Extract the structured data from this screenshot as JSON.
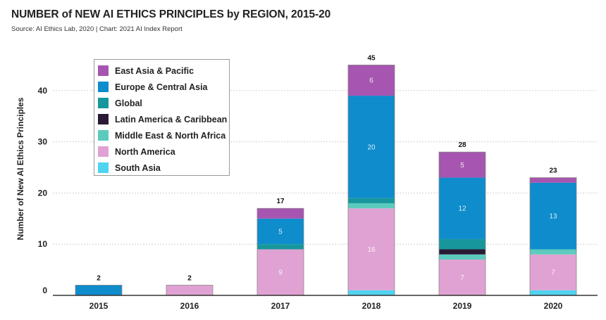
{
  "title": "NUMBER of NEW AI ETHICS PRINCIPLES by REGION, 2015-20",
  "source": "Source: AI Ethics Lab, 2020 | Chart: 2021 AI Index Report",
  "chart_data": {
    "type": "bar",
    "stacked": true,
    "title": "NUMBER of NEW AI ETHICS PRINCIPLES by REGION, 2015-20",
    "xlabel": "",
    "ylabel": "Number of New AI Ethics Principles",
    "ylim": [
      0,
      45
    ],
    "yticks": [
      0,
      10,
      20,
      30,
      40
    ],
    "categories": [
      "2015",
      "2016",
      "2017",
      "2018",
      "2019",
      "2020"
    ],
    "totals": [
      2,
      2,
      17,
      45,
      28,
      23
    ],
    "legend_position": "top-left",
    "series": [
      {
        "name": "South Asia",
        "color": "#4fd3f0",
        "values": [
          0,
          0,
          0,
          1,
          0,
          1
        ],
        "labels": [
          "",
          "",
          "",
          "",
          "",
          ""
        ]
      },
      {
        "name": "North America",
        "color": "#e0a2d2",
        "values": [
          0,
          2,
          9,
          16,
          7,
          7
        ],
        "labels": [
          "",
          "",
          "9",
          "16",
          "7",
          "7"
        ]
      },
      {
        "name": "Middle East & North Africa",
        "color": "#5ccbbd",
        "values": [
          0,
          0,
          0,
          1,
          1,
          1
        ],
        "labels": [
          "",
          "",
          "",
          "",
          "",
          ""
        ]
      },
      {
        "name": "Latin America & Caribbean",
        "color": "#2a1a35",
        "values": [
          0,
          0,
          0,
          0,
          1,
          0
        ],
        "labels": [
          "",
          "",
          "",
          "",
          "",
          ""
        ]
      },
      {
        "name": "Global",
        "color": "#17979b",
        "values": [
          0,
          0,
          1,
          1,
          2,
          0
        ],
        "labels": [
          "",
          "",
          "",
          "",
          "",
          ""
        ]
      },
      {
        "name": "Europe & Central Asia",
        "color": "#0e8ccc",
        "values": [
          2,
          0,
          5,
          20,
          12,
          13
        ],
        "labels": [
          "",
          "",
          "5",
          "20",
          "12",
          "13"
        ]
      },
      {
        "name": "East Asia & Pacific",
        "color": "#a655b0",
        "values": [
          0,
          0,
          2,
          6,
          5,
          1
        ],
        "labels": [
          "",
          "",
          "",
          "6",
          "5",
          ""
        ]
      }
    ]
  },
  "legend": [
    {
      "label": "East Asia & Pacific",
      "color": "#a655b0"
    },
    {
      "label": "Europe & Central Asia",
      "color": "#0e8ccc"
    },
    {
      "label": "Global",
      "color": "#17979b"
    },
    {
      "label": "Latin America & Caribbean",
      "color": "#2a1a35"
    },
    {
      "label": "Middle East & North Africa",
      "color": "#5ccbbd"
    },
    {
      "label": "North America",
      "color": "#e0a2d2"
    },
    {
      "label": "South Asia",
      "color": "#4fd3f0"
    }
  ]
}
